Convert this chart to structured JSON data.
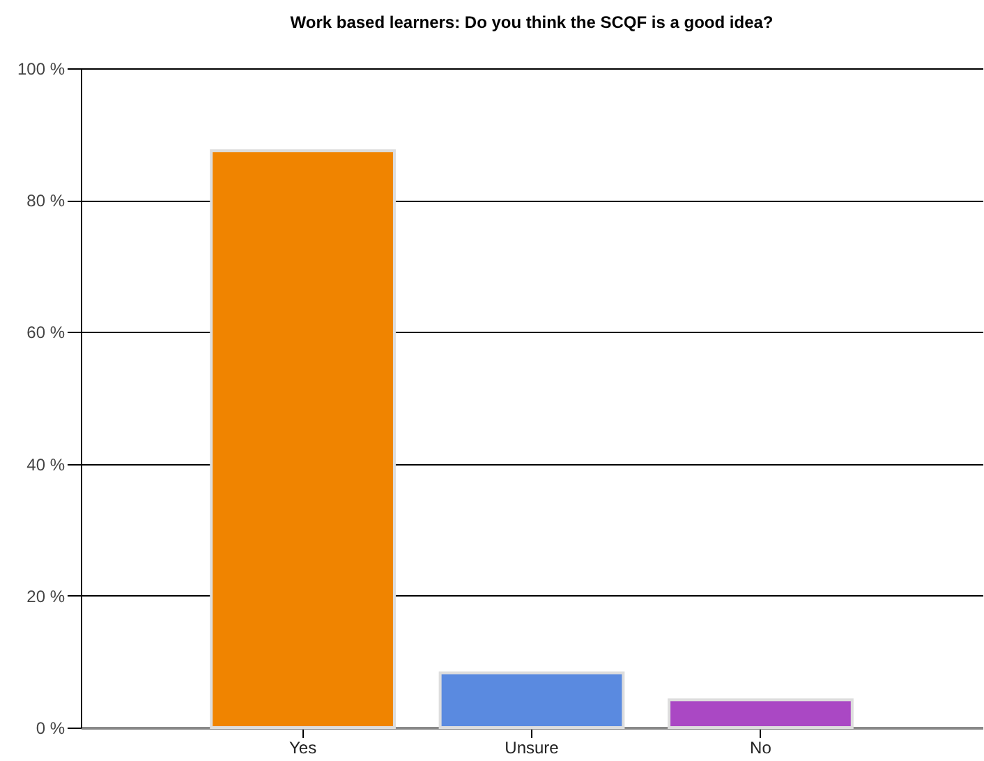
{
  "chart_data": {
    "type": "bar",
    "title": "Work based learners: Do you think the SCQF is a good idea?",
    "categories": [
      "Yes",
      "Unsure",
      "No"
    ],
    "values": [
      87.5,
      8.3,
      4.2
    ],
    "colors": [
      "#f08400",
      "#5a8ae0",
      "#aa48c4"
    ],
    "ylim": [
      0,
      100
    ],
    "yticks": [
      {
        "value": 0,
        "label": "0 %"
      },
      {
        "value": 20,
        "label": "20 %"
      },
      {
        "value": 40,
        "label": "40 %"
      },
      {
        "value": 60,
        "label": "60 %"
      },
      {
        "value": 80,
        "label": "80 %"
      },
      {
        "value": 100,
        "label": "100 %"
      }
    ],
    "grid": "y",
    "legend": false
  }
}
